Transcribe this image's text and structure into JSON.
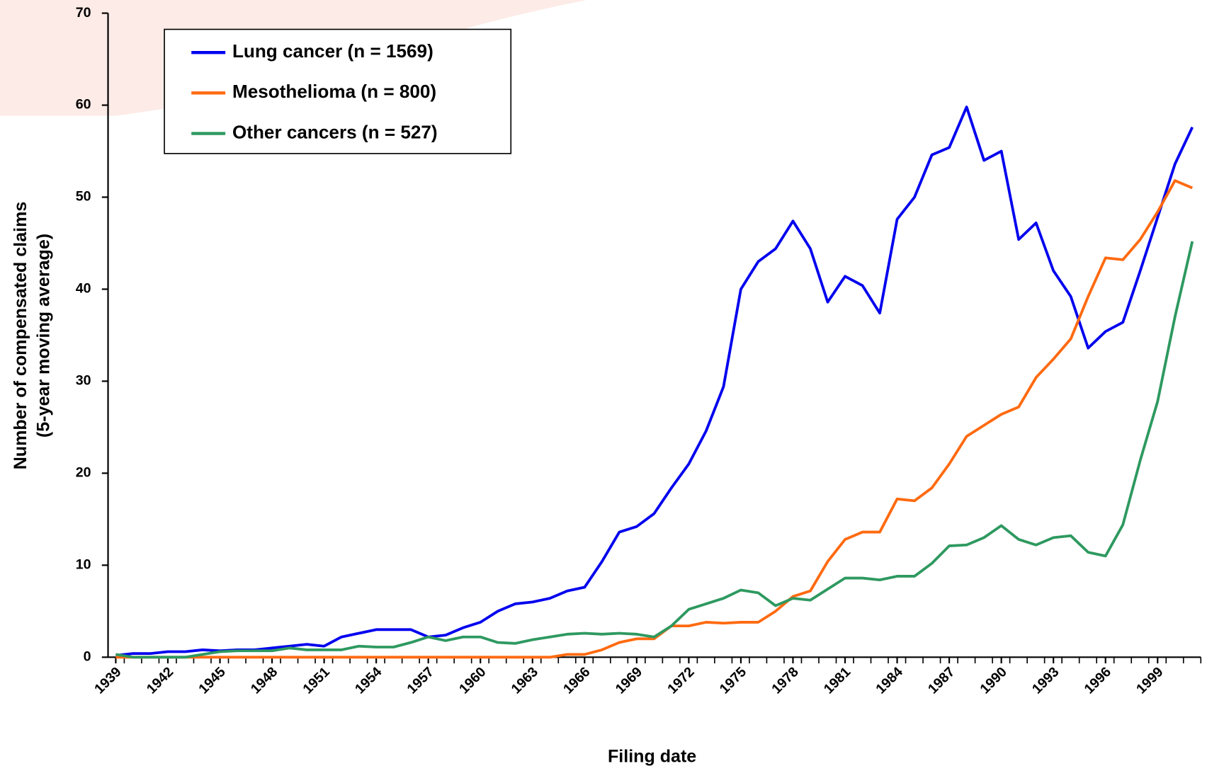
{
  "chart_data": {
    "type": "line",
    "xlabel": "Filing date",
    "ylabel": [
      "Number of compensated claims",
      "(5-year moving average)"
    ],
    "x": [
      1939,
      1940,
      1941,
      1942,
      1943,
      1944,
      1945,
      1946,
      1947,
      1948,
      1949,
      1950,
      1951,
      1952,
      1953,
      1954,
      1955,
      1956,
      1957,
      1958,
      1959,
      1960,
      1961,
      1962,
      1963,
      1964,
      1965,
      1966,
      1967,
      1968,
      1969,
      1970,
      1971,
      1972,
      1973,
      1974,
      1975,
      1976,
      1977,
      1978,
      1979,
      1980,
      1981,
      1982,
      1983,
      1984,
      1985,
      1986,
      1987,
      1988,
      1989,
      1990,
      1991,
      1992,
      1993,
      1994,
      1995,
      1996,
      1997,
      1998,
      1999,
      2000,
      2001
    ],
    "series": [
      {
        "name": "Lung cancer (n = 1569)",
        "color": "#0000ee",
        "values": [
          0.2,
          0.4,
          0.4,
          0.6,
          0.6,
          0.8,
          0.7,
          0.8,
          0.8,
          1.0,
          1.2,
          1.4,
          1.2,
          2.2,
          2.6,
          3.0,
          3.0,
          3.0,
          2.2,
          2.4,
          3.2,
          3.8,
          5.0,
          5.8,
          6.0,
          6.4,
          7.2,
          7.6,
          10.4,
          13.6,
          14.2,
          15.6,
          18.4,
          21.0,
          24.6,
          29.4,
          40,
          43,
          44.4,
          47.4,
          44.4,
          38.6,
          41.4,
          40.4,
          37.4,
          47.6,
          50,
          54.6,
          55.4,
          59.8,
          54,
          55,
          45.4,
          47.2,
          42,
          39.2,
          33.6,
          35.4,
          36.4,
          42,
          47.8,
          53.6,
          57.6
        ]
      },
      {
        "name": "Mesothelioma (n = 800)",
        "color": "#ff6a10",
        "values": [
          0,
          0,
          0,
          0,
          0,
          0,
          0,
          0,
          0,
          0,
          0,
          0,
          0,
          0,
          0,
          0,
          0,
          0,
          0,
          0,
          0,
          0,
          0,
          0,
          0,
          0,
          0.3,
          0.3,
          0.8,
          1.6,
          2.0,
          2.0,
          3.4,
          3.4,
          3.8,
          3.7,
          3.8,
          3.8,
          5.0,
          6.6,
          7.2,
          10.4,
          12.8,
          13.6,
          13.6,
          17.2,
          17.0,
          18.4,
          21.0,
          24.0,
          25.2,
          26.4,
          27.2,
          30.4,
          32.4,
          34.6,
          39.2,
          43.4,
          43.2,
          45.4,
          48.4,
          51.8,
          51.0
        ]
      },
      {
        "name": "Other cancers (n = 527)",
        "color": "#2e9960",
        "values": [
          0.3,
          0,
          0,
          0,
          0,
          0.3,
          0.6,
          0.7,
          0.7,
          0.7,
          1.0,
          0.8,
          0.8,
          0.8,
          1.2,
          1.1,
          1.1,
          1.6,
          2.2,
          1.8,
          2.2,
          2.2,
          1.6,
          1.5,
          1.9,
          2.2,
          2.5,
          2.6,
          2.5,
          2.6,
          2.5,
          2.2,
          3.4,
          5.2,
          5.8,
          6.4,
          7.3,
          7.0,
          5.6,
          6.4,
          6.2,
          7.4,
          8.6,
          8.6,
          8.4,
          8.8,
          8.8,
          10.2,
          12.1,
          12.2,
          13.0,
          14.3,
          12.8,
          12.2,
          13.0,
          13.2,
          11.4,
          11.0,
          14.4,
          21.4,
          27.8,
          37.0,
          45.2
        ]
      }
    ],
    "xlim": [
      1939,
      2001
    ],
    "xticks": [
      1939,
      1942,
      1945,
      1948,
      1951,
      1954,
      1957,
      1960,
      1963,
      1966,
      1969,
      1972,
      1975,
      1978,
      1981,
      1984,
      1987,
      1990,
      1993,
      1996,
      1999
    ],
    "ylim": [
      0,
      70
    ],
    "yticks": [
      0,
      10,
      20,
      30,
      40,
      50,
      60,
      70
    ],
    "grid": false,
    "legend": "upper left"
  }
}
